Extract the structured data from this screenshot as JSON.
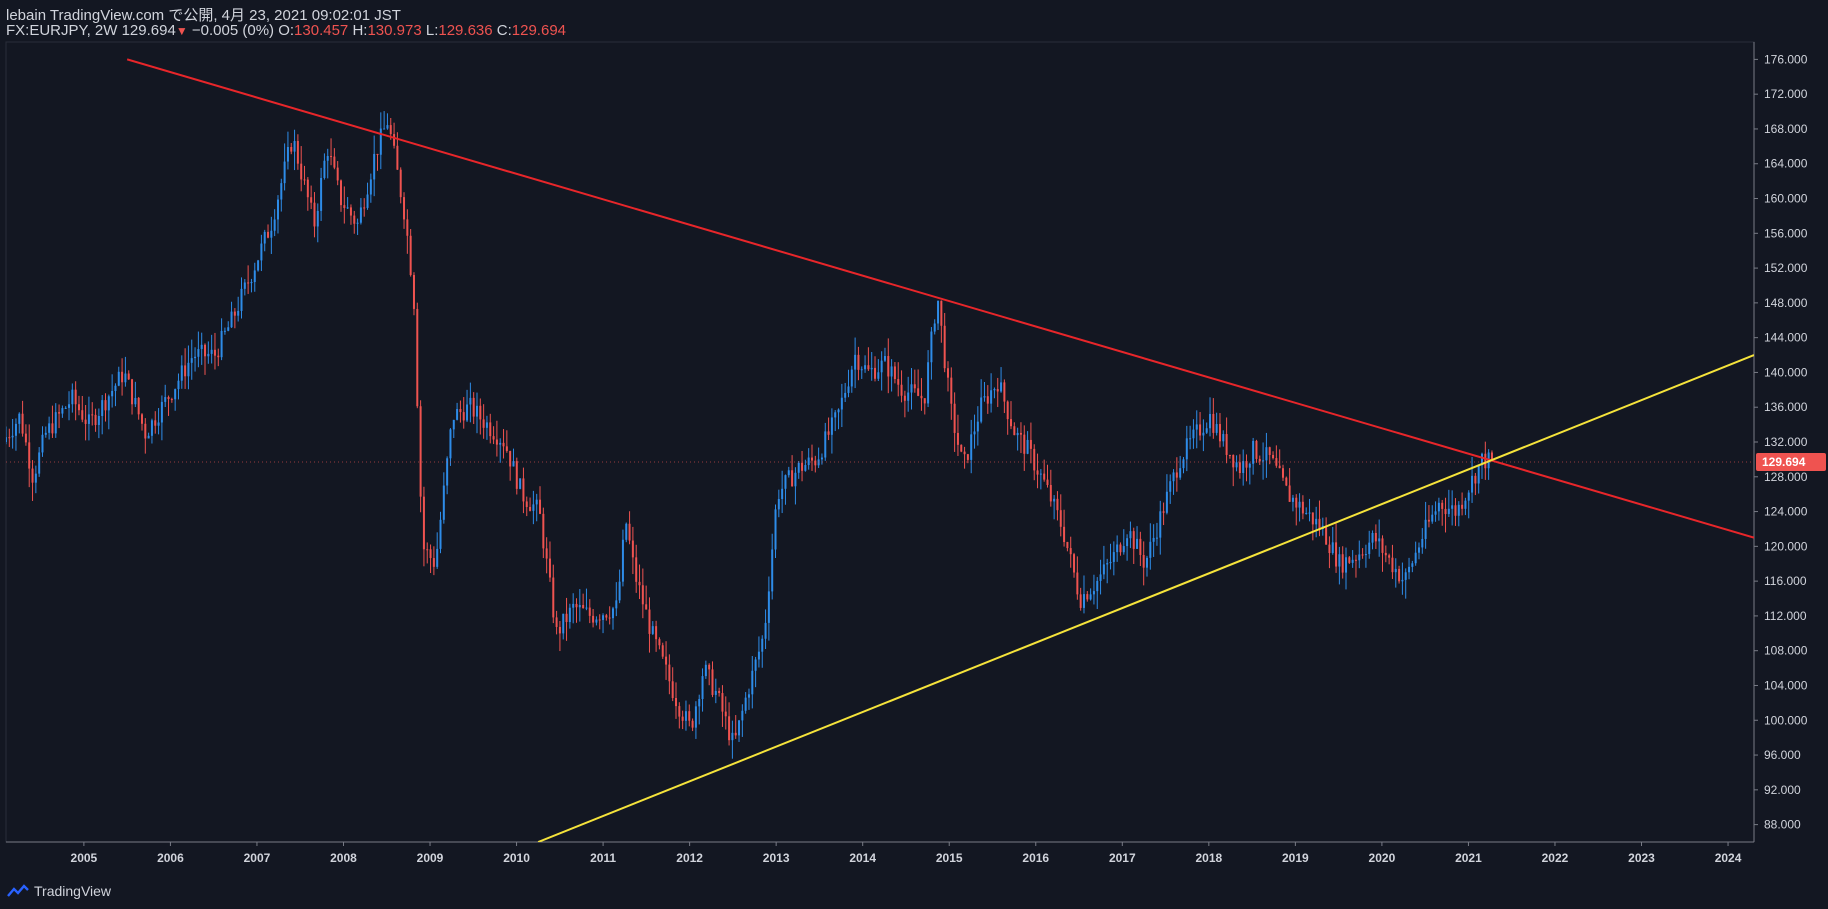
{
  "header": {
    "publisher": "lebain TradingView.com で公開, 4月 23, 2021 09:02:01 JST",
    "symbol": "FX:EURJPY, 2W",
    "last": "129.694",
    "change_arrow": "▼",
    "change": "−0.005 (0%)",
    "o_label": "O:",
    "o_value": "130.457",
    "h_label": "H:",
    "h_value": "130.973",
    "l_label": "L:",
    "l_value": "129.636",
    "c_label": "C:",
    "c_value": "129.694"
  },
  "footer": {
    "brand": "TradingView",
    "logo_icon": "tradingview-logo-icon"
  },
  "colors": {
    "background": "#131722",
    "up": "#2e8ce8",
    "down": "#ef5350",
    "resistance": "#e8262a",
    "support": "#f5e33b",
    "axis_text": "#d1d4dc"
  },
  "chart_data": {
    "type": "candlestick",
    "symbol": "FX:EURJPY",
    "interval": "2W",
    "last_price": 129.694,
    "last_price_label": "129.694",
    "ylim": [
      86,
      178
    ],
    "xlim": [
      2004.1,
      2024.3
    ],
    "y_ticks": [
      "88.000",
      "92.000",
      "96.000",
      "100.000",
      "104.000",
      "108.000",
      "112.000",
      "116.000",
      "120.000",
      "124.000",
      "128.000",
      "132.000",
      "136.000",
      "140.000",
      "144.000",
      "148.000",
      "152.000",
      "156.000",
      "160.000",
      "164.000",
      "168.000",
      "172.000",
      "176.000"
    ],
    "x_ticks": [
      "2005",
      "2006",
      "2007",
      "2008",
      "2009",
      "2010",
      "2011",
      "2012",
      "2013",
      "2014",
      "2015",
      "2016",
      "2017",
      "2018",
      "2019",
      "2020",
      "2021",
      "2022",
      "2023",
      "2024"
    ],
    "trendlines": [
      {
        "name": "resistance",
        "color": "#e8262a",
        "points": [
          [
            2005.5,
            176.0
          ],
          [
            2024.3,
            121.0
          ]
        ]
      },
      {
        "name": "support",
        "color": "#f5e33b",
        "points": [
          [
            2010.25,
            86.0
          ],
          [
            2024.3,
            142.0
          ]
        ]
      }
    ],
    "price_path": [
      [
        2004.1,
        132
      ],
      [
        2004.3,
        135
      ],
      [
        2004.45,
        128
      ],
      [
        2004.6,
        133
      ],
      [
        2004.9,
        137
      ],
      [
        2005.1,
        134
      ],
      [
        2005.3,
        137
      ],
      [
        2005.5,
        140
      ],
      [
        2005.75,
        133
      ],
      [
        2006.0,
        137
      ],
      [
        2006.3,
        142
      ],
      [
        2006.55,
        142
      ],
      [
        2006.75,
        146
      ],
      [
        2007.0,
        152
      ],
      [
        2007.2,
        157
      ],
      [
        2007.45,
        167
      ],
      [
        2007.55,
        163
      ],
      [
        2007.7,
        157
      ],
      [
        2007.85,
        166
      ],
      [
        2008.0,
        160
      ],
      [
        2008.2,
        157
      ],
      [
        2008.4,
        165
      ],
      [
        2008.55,
        169
      ],
      [
        2008.75,
        158
      ],
      [
        2008.85,
        149
      ],
      [
        2008.95,
        120
      ],
      [
        2009.1,
        118
      ],
      [
        2009.3,
        135
      ],
      [
        2009.5,
        136
      ],
      [
        2009.7,
        134
      ],
      [
        2009.9,
        132
      ],
      [
        2010.1,
        126
      ],
      [
        2010.3,
        124
      ],
      [
        2010.5,
        110
      ],
      [
        2010.7,
        113
      ],
      [
        2010.9,
        112
      ],
      [
        2011.2,
        113
      ],
      [
        2011.3,
        123
      ],
      [
        2011.4,
        117
      ],
      [
        2011.6,
        110
      ],
      [
        2011.75,
        106
      ],
      [
        2011.9,
        102
      ],
      [
        2012.05,
        99
      ],
      [
        2012.2,
        106
      ],
      [
        2012.35,
        103
      ],
      [
        2012.55,
        97
      ],
      [
        2012.7,
        103
      ],
      [
        2012.9,
        110
      ],
      [
        2013.05,
        126
      ],
      [
        2013.3,
        129
      ],
      [
        2013.5,
        130
      ],
      [
        2013.75,
        135
      ],
      [
        2013.95,
        142
      ],
      [
        2014.1,
        140
      ],
      [
        2014.3,
        141
      ],
      [
        2014.5,
        138
      ],
      [
        2014.75,
        137
      ],
      [
        2014.9,
        149
      ],
      [
        2015.05,
        136
      ],
      [
        2015.2,
        129
      ],
      [
        2015.4,
        136
      ],
      [
        2015.6,
        139
      ],
      [
        2015.8,
        133
      ],
      [
        2015.95,
        131
      ],
      [
        2016.15,
        127
      ],
      [
        2016.35,
        122
      ],
      [
        2016.55,
        114
      ],
      [
        2016.75,
        116
      ],
      [
        2016.95,
        119
      ],
      [
        2017.1,
        122
      ],
      [
        2017.3,
        118
      ],
      [
        2017.5,
        124
      ],
      [
        2017.7,
        130
      ],
      [
        2017.9,
        133
      ],
      [
        2018.05,
        135
      ],
      [
        2018.2,
        132
      ],
      [
        2018.4,
        129
      ],
      [
        2018.55,
        131
      ],
      [
        2018.75,
        130
      ],
      [
        2018.95,
        126
      ],
      [
        2019.15,
        124
      ],
      [
        2019.35,
        122
      ],
      [
        2019.55,
        118
      ],
      [
        2019.75,
        119
      ],
      [
        2019.95,
        121
      ],
      [
        2020.15,
        118
      ],
      [
        2020.3,
        116
      ],
      [
        2020.5,
        121
      ],
      [
        2020.7,
        125
      ],
      [
        2020.9,
        124
      ],
      [
        2021.05,
        127
      ],
      [
        2021.2,
        130
      ],
      [
        2021.3,
        129.694
      ]
    ]
  }
}
